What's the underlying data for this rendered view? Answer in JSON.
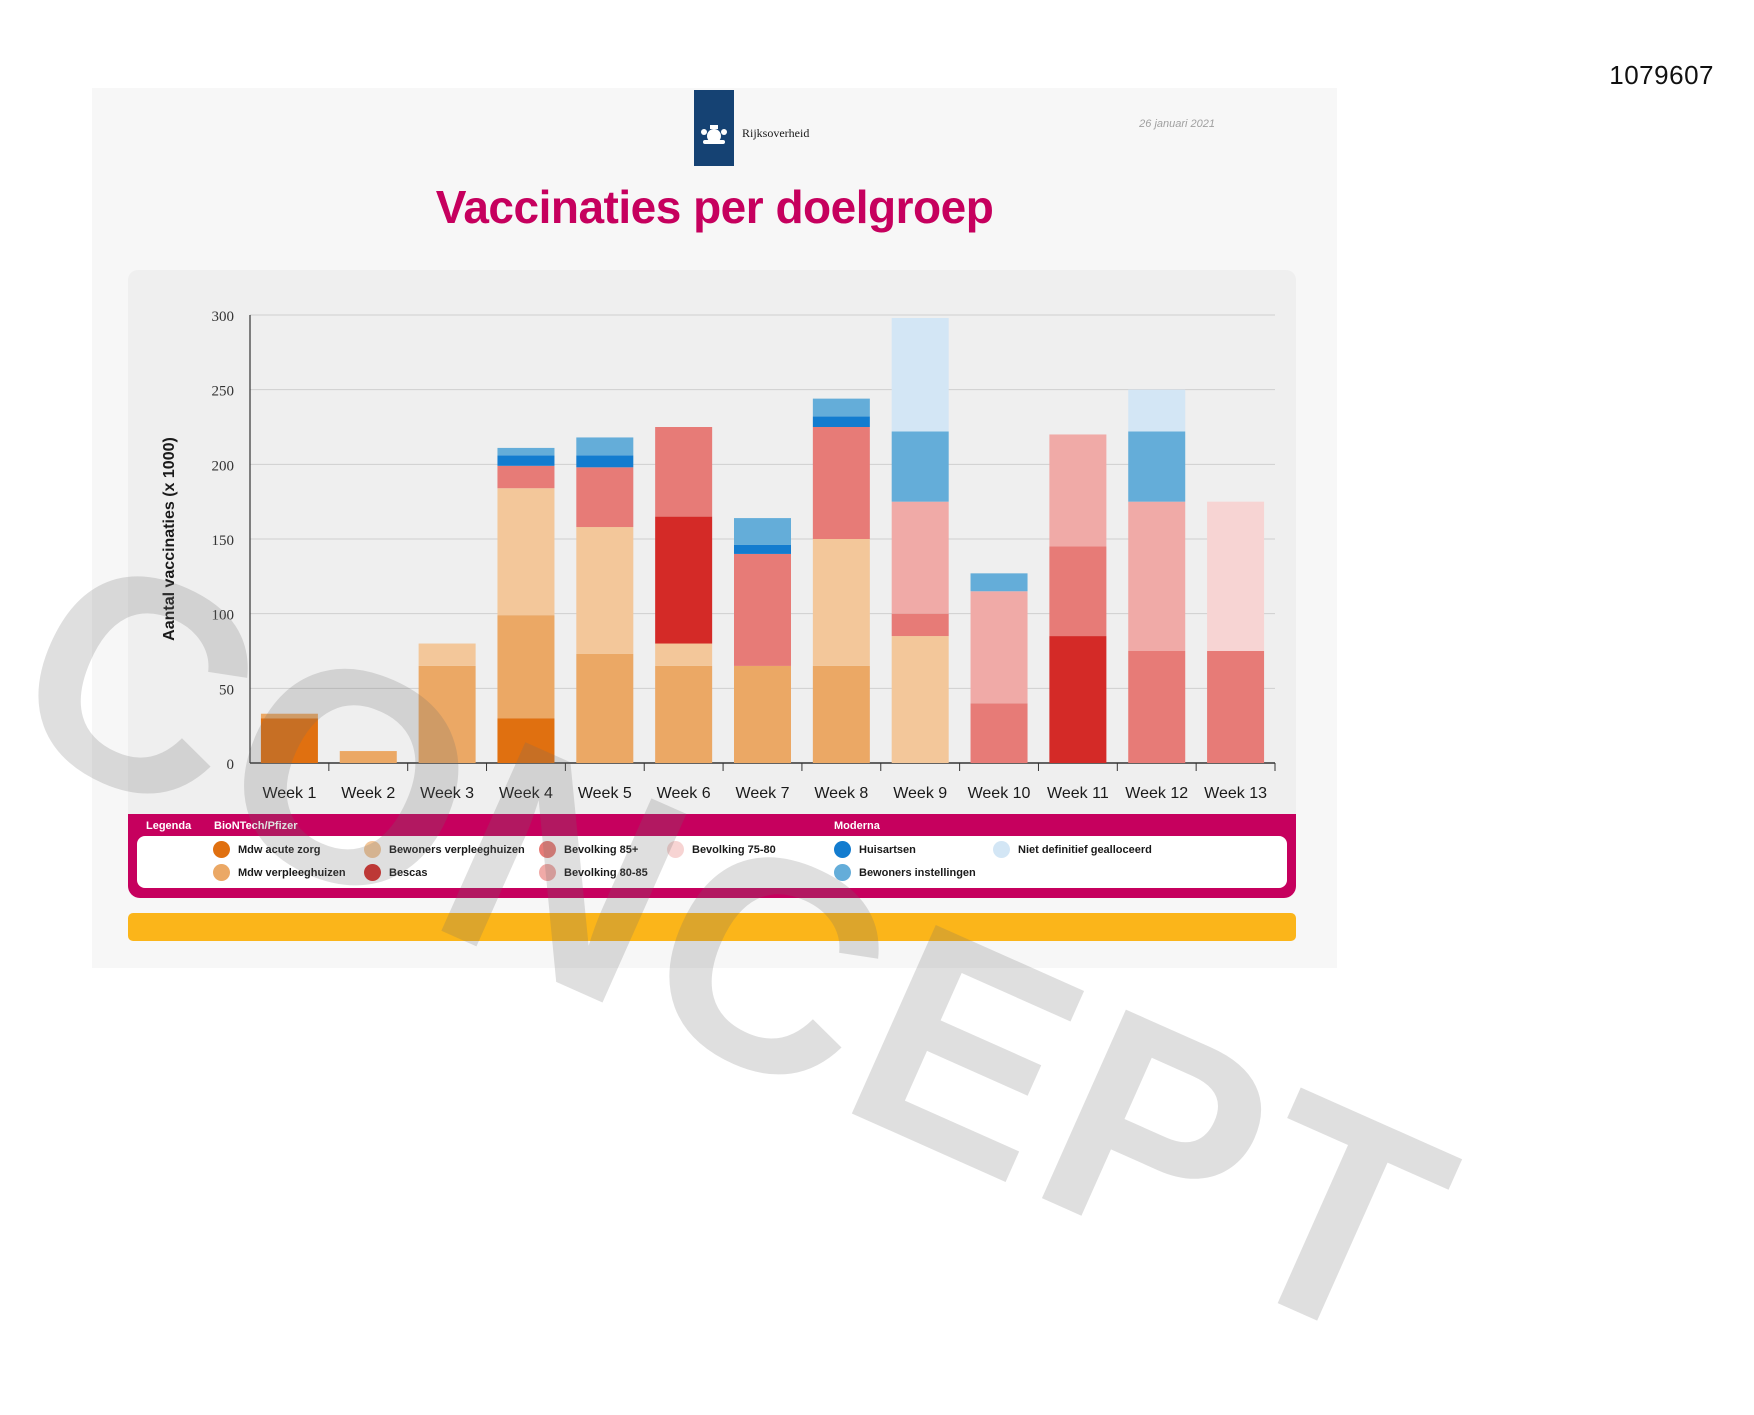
{
  "doc_id": "1079607",
  "header": {
    "logo_text": "Rijksoverheid",
    "date": "26 januari 2021"
  },
  "watermark": "CONCEPT",
  "colors": {
    "title": "#c6005e",
    "legend_bar": "#c6005e",
    "footer_bar": "#fbb51a",
    "logo_blue": "#154273"
  },
  "legend": {
    "label": "Legenda",
    "group_pfizer": "BioNTech/Pfizer",
    "group_moderna": "Moderna",
    "items": [
      {
        "label": "Mdw acute zorg",
        "color": "#e07010"
      },
      {
        "label": "Mdw verpleeghuizen",
        "color": "#eba865"
      },
      {
        "label": "Bewoners verpleeghuizen",
        "color": "#f3c79a"
      },
      {
        "label": "Bescas",
        "color": "#d42a27"
      },
      {
        "label": "Bevolking 85+",
        "color": "#e77b77"
      },
      {
        "label": "Bevolking 80-85",
        "color": "#f0aaa7"
      },
      {
        "label": "Bevolking 75-80",
        "color": "#f7d4d3"
      },
      {
        "label": "Huisartsen",
        "color": "#137ccf"
      },
      {
        "label": "Bewoners instellingen",
        "color": "#64add9"
      },
      {
        "label": "Niet definitief gealloceerd",
        "color": "#d3e6f5"
      }
    ]
  },
  "chart_data": {
    "type": "bar",
    "stacked": true,
    "title": "Vaccinaties per doelgroep",
    "ylabel": "Aantal vaccinaties (x 1000)",
    "xlabel": "",
    "ylim": [
      0,
      300
    ],
    "yticks": [
      0,
      50,
      100,
      150,
      200,
      250,
      300
    ],
    "grid": true,
    "legend_position": "bottom",
    "categories": [
      "Week 1",
      "Week 2",
      "Week 3",
      "Week 4",
      "Week 5",
      "Week 6",
      "Week 7",
      "Week 8",
      "Week 9",
      "Week 10",
      "Week 11",
      "Week 12",
      "Week 13"
    ],
    "series": [
      {
        "name": "Mdw acute zorg",
        "color": "#e07010",
        "values": [
          30,
          0,
          0,
          30,
          0,
          0,
          0,
          0,
          0,
          0,
          0,
          0,
          0
        ]
      },
      {
        "name": "Mdw verpleeghuizen",
        "color": "#eba865",
        "values": [
          3,
          8,
          65,
          69,
          73,
          65,
          65,
          65,
          0,
          0,
          0,
          0,
          0
        ]
      },
      {
        "name": "Bewoners verpleeghuizen",
        "color": "#f3c79a",
        "values": [
          0,
          0,
          15,
          85,
          85,
          15,
          0,
          85,
          85,
          0,
          0,
          0,
          0
        ]
      },
      {
        "name": "Bescas",
        "color": "#d42a27",
        "values": [
          0,
          0,
          0,
          0,
          0,
          85,
          0,
          0,
          0,
          0,
          85,
          0,
          0
        ]
      },
      {
        "name": "Bevolking 85+",
        "color": "#e77b77",
        "values": [
          0,
          0,
          0,
          15,
          40,
          60,
          75,
          75,
          15,
          40,
          60,
          75,
          75
        ]
      },
      {
        "name": "Bevolking 80-85",
        "color": "#f0aaa7",
        "values": [
          0,
          0,
          0,
          0,
          0,
          0,
          0,
          0,
          75,
          75,
          75,
          100,
          0
        ]
      },
      {
        "name": "Bevolking 75-80",
        "color": "#f7d4d3",
        "values": [
          0,
          0,
          0,
          0,
          0,
          0,
          0,
          0,
          0,
          0,
          0,
          0,
          100
        ]
      },
      {
        "name": "Huisartsen",
        "color": "#137ccf",
        "values": [
          0,
          0,
          0,
          7,
          8,
          0,
          6,
          7,
          0,
          0,
          0,
          0,
          0
        ]
      },
      {
        "name": "Bewoners instellingen",
        "color": "#64add9",
        "values": [
          0,
          0,
          0,
          5,
          12,
          0,
          18,
          12,
          47,
          12,
          0,
          47,
          0
        ]
      },
      {
        "name": "Niet definitief gealloceerd",
        "color": "#d3e6f5",
        "values": [
          0,
          0,
          0,
          0,
          0,
          0,
          0,
          0,
          76,
          0,
          0,
          28,
          0
        ]
      }
    ]
  }
}
